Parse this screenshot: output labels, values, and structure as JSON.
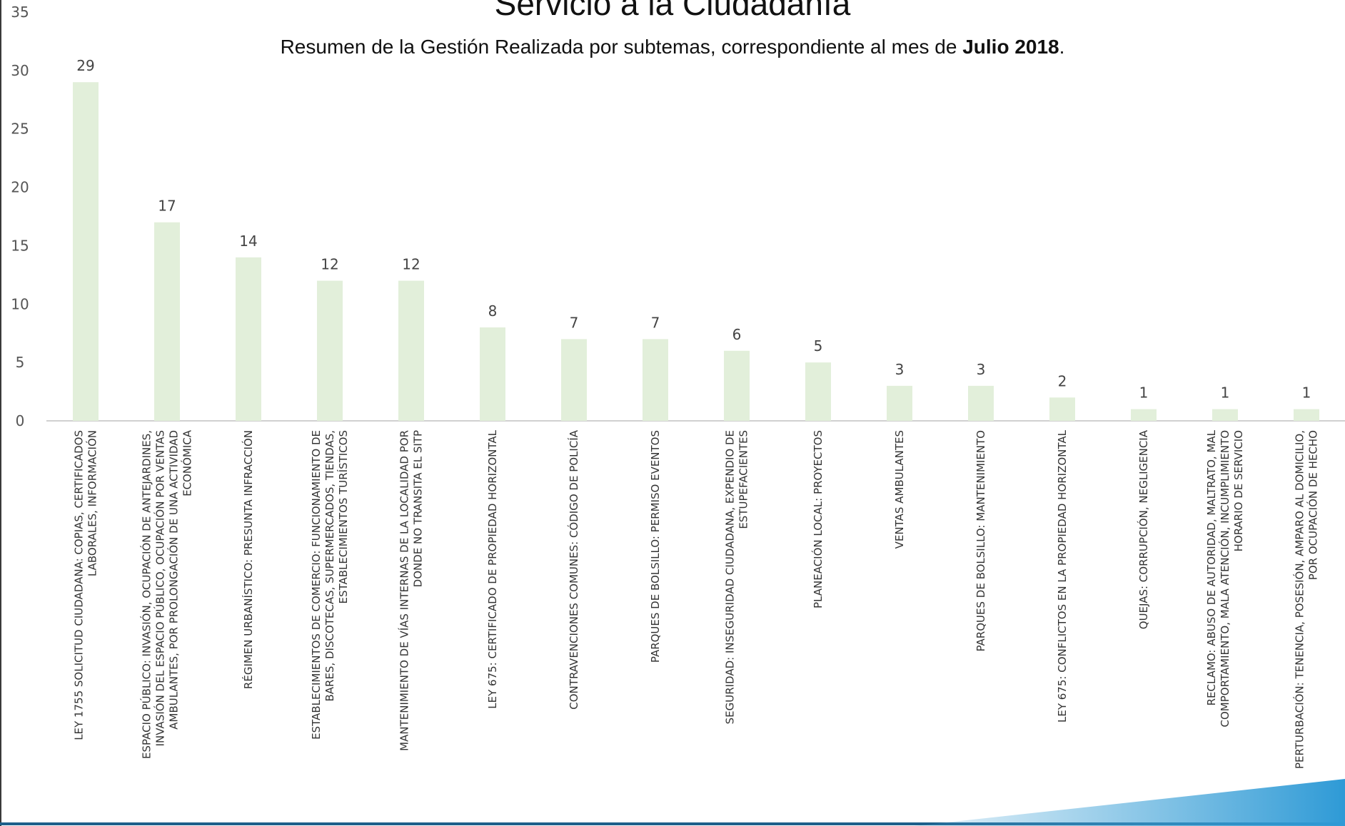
{
  "chart_data": {
    "type": "bar",
    "title": "Servicio a la Ciudadanía",
    "subtitle": {
      "prefix": "Resumen de la Gestión Realizada por subtemas, correspondiente al mes de ",
      "bold": "Julio 2018",
      "suffix": "."
    },
    "xlabel": "",
    "ylabel": "",
    "ylim": [
      0,
      35
    ],
    "yticks": [
      0,
      5,
      10,
      15,
      20,
      25,
      30,
      35
    ],
    "grid": false,
    "bar_color": "#e2efda",
    "categories": [
      [
        "LEY 1755 SOLICITUD CIUDADANA: COPIAS, CERTIFICADOS",
        "LABORALES, INFORMACIÓN"
      ],
      [
        "ESPACIO PÚBLICO: INVASIÓN, OCUPACIÓN DE ANTEJARDINES,",
        "INVASIÓN DEL ESPACIO PÚBLICO, OCUPACIÓN POR VENTAS",
        "AMBULANTES, POR PROLONGACIÓN DE UNA ACTIVIDAD",
        "ECONÓMICA"
      ],
      [
        "RÉGIMEN URBANÍSTICO: PRESUNTA INFRACCIÓN"
      ],
      [
        "ESTABLECIMIENTOS DE COMERCIO: FUNCIONAMIENTO DE",
        "BARES, DISCOTECAS, SUPERMERCADOS, TIENDAS,",
        "ESTABLECIMIENTOS TURÍSTICOS"
      ],
      [
        "MANTENIMIENTO DE VÍAS INTERNAS DE LA LOCALIDAD POR",
        "DONDE NO TRANSITA EL SITP"
      ],
      [
        "LEY 675: CERTIFICADO DE PROPIEDAD HORIZONTAL"
      ],
      [
        "CONTRAVENCIONES COMUNES: CÓDIGO DE POLICÍA"
      ],
      [
        "PARQUES DE BOLSILLO: PERMISO EVENTOS"
      ],
      [
        "SEGURIDAD: INSEGURIDAD CIUDADANA, EXPENDIO DE",
        "ESTUPEFACIENTES"
      ],
      [
        "PLANEACIÓN LOCAL: PROYECTOS"
      ],
      [
        "VENTAS AMBULANTES"
      ],
      [
        "PARQUES DE BOLSILLO: MANTENIMIENTO"
      ],
      [
        "LEY 675: CONFLICTOS EN LA PROPIEDAD HORIZONTAL"
      ],
      [
        "QUEJAS: CORRUPCIÓN, NEGLIGENCIA"
      ],
      [
        "RECLAMO: ABUSO DE AUTORIDAD, MALTRATO, MAL",
        "COMPORTAMIENTO, MALA ATENCIÓN, INCUMPLIMIENTO",
        "HORARIO DE SERVICIO"
      ],
      [
        "PERTURBACIÓN: TENENCIA, POSESIÓN, AMPARO AL DOMICILIO,",
        "POR OCUPACIÓN DE HECHO"
      ]
    ],
    "values": [
      29,
      17,
      14,
      12,
      12,
      8,
      7,
      7,
      6,
      5,
      3,
      3,
      2,
      1,
      1,
      1
    ]
  }
}
